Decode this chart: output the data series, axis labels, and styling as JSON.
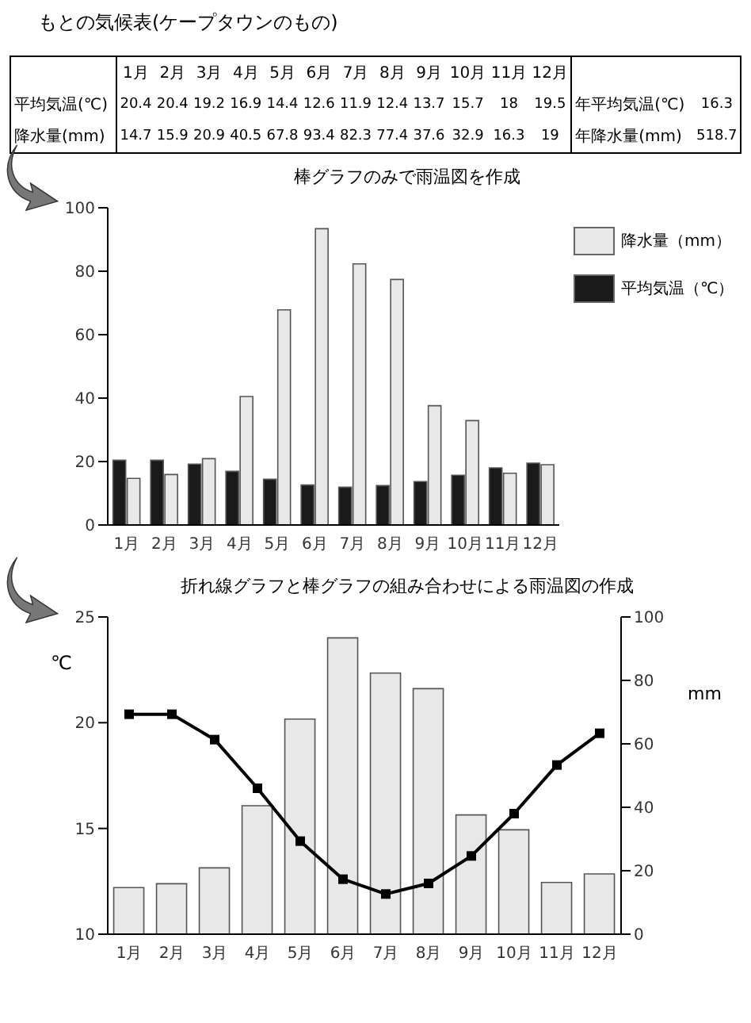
{
  "chart_data": [
    {
      "type": "heatmap",
      "title": "もとの気候表(ケープタウンのもの)",
      "categories": [
        "1月",
        "2月",
        "3月",
        "4月",
        "5月",
        "6月",
        "7月",
        "8月",
        "9月",
        "10月",
        "11月",
        "12月"
      ],
      "y_categories": [
        "平均気温(℃)",
        "降水量(mm)"
      ],
      "cells": [
        [
          20.4,
          20.4,
          19.2,
          16.9,
          14.4,
          12.6,
          11.9,
          12.4,
          13.7,
          15.7,
          18,
          19.5
        ],
        [
          14.7,
          15.9,
          20.9,
          40.5,
          67.8,
          93.4,
          82.3,
          77.4,
          37.6,
          32.9,
          16.3,
          19
        ]
      ],
      "data_labels": true,
      "annotations": [
        "年平均気温(℃)",
        "16.3",
        "年降水量(mm)",
        "518.7"
      ]
    },
    {
      "type": "bar",
      "title": "棒グラフのみで雨温図を作成",
      "categories": [
        "1月",
        "2月",
        "3月",
        "4月",
        "5月",
        "6月",
        "7月",
        "8月",
        "9月",
        "10月",
        "11月",
        "12月"
      ],
      "series": [
        {
          "name": "平均気温（℃）",
          "color": "#1a1a1a",
          "values": [
            20.4,
            20.4,
            19.2,
            16.9,
            14.4,
            12.6,
            11.9,
            12.4,
            13.7,
            15.7,
            18,
            19.5
          ]
        },
        {
          "name": "降水量（mm）",
          "color": "#e8e8e8",
          "values": [
            14.7,
            15.9,
            20.9,
            40.5,
            67.8,
            93.4,
            82.3,
            77.4,
            37.6,
            32.9,
            16.3,
            19
          ]
        }
      ],
      "ylim": [
        0,
        100
      ],
      "yticks": [
        0,
        20,
        40,
        60,
        80,
        100
      ],
      "legend": "top right"
    },
    {
      "type": "bar",
      "title": "折れ線グラフと棒グラフの組み合わせによる雨温図の作成",
      "ylabel": "℃",
      "y2label": "mm",
      "categories": [
        "1月",
        "2月",
        "3月",
        "4月",
        "5月",
        "6月",
        "7月",
        "8月",
        "9月",
        "10月",
        "11月",
        "12月"
      ],
      "series": [
        {
          "axis": "y2",
          "color": "#e8e8e8",
          "values": [
            14.7,
            15.9,
            20.9,
            40.5,
            67.8,
            93.4,
            82.3,
            77.4,
            37.6,
            32.9,
            16.3,
            19
          ]
        },
        {
          "type": "line",
          "color": "#000000",
          "marker": "square",
          "line_style": "solid",
          "values": [
            20.4,
            20.4,
            19.2,
            16.9,
            14.4,
            12.6,
            11.9,
            12.4,
            13.7,
            15.7,
            18,
            19.5
          ]
        }
      ],
      "ylim": [
        10,
        25
      ],
      "yticks": [
        10,
        15,
        20,
        25
      ],
      "y2lim": [
        0,
        100
      ],
      "y2ticks": [
        0,
        20,
        40,
        60,
        80,
        100
      ]
    }
  ]
}
